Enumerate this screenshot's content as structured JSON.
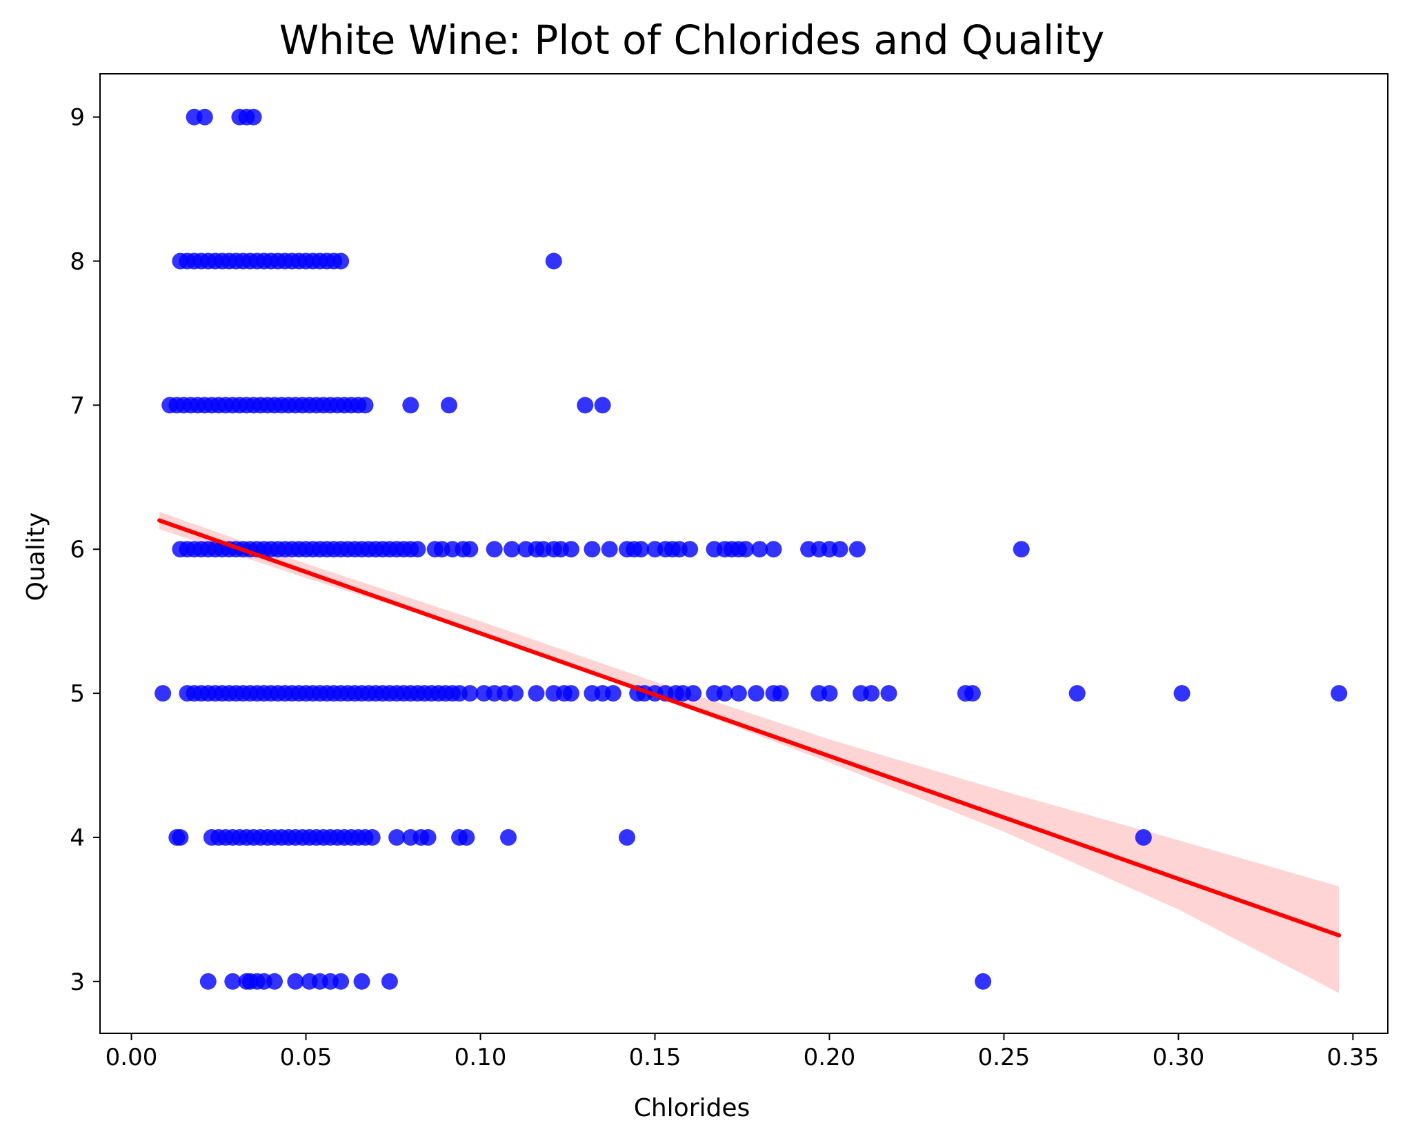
{
  "chart_data": {
    "type": "scatter",
    "title": "White Wine: Plot of Chlorides and Quality",
    "xlabel": "Chlorides",
    "ylabel": "Quality",
    "xlim": [
      -0.009,
      0.36
    ],
    "ylim": [
      2.64,
      9.3
    ],
    "x_ticks": [
      0.0,
      0.05,
      0.1,
      0.15,
      0.2,
      0.25,
      0.3,
      0.35
    ],
    "x_tick_labels": [
      "0.00",
      "0.05",
      "0.10",
      "0.15",
      "0.20",
      "0.25",
      "0.30",
      "0.35"
    ],
    "y_ticks": [
      3,
      4,
      5,
      6,
      7,
      8,
      9
    ],
    "y_tick_labels": [
      "3",
      "4",
      "5",
      "6",
      "7",
      "8",
      "9"
    ],
    "grid": false,
    "colors": {
      "points": "#0000ff",
      "fit_line": "#ff0000",
      "confidence_band": "#ffd4d4"
    },
    "series": [
      {
        "kind": "scatter",
        "clusters": [
          {
            "y": 9,
            "x": [
              0.018,
              0.021,
              0.031,
              0.033,
              0.035
            ]
          },
          {
            "y": 8,
            "x_range": [
              0.014,
              0.06
            ],
            "step": 0.002,
            "extra_x": [
              0.121
            ]
          },
          {
            "y": 7,
            "x_range": [
              0.011,
              0.068
            ],
            "step": 0.002,
            "extra_x": [
              0.08,
              0.091,
              0.13,
              0.135
            ]
          },
          {
            "y": 6,
            "x_range": [
              0.014,
              0.08
            ],
            "step": 0.002,
            "extra_x": [
              0.082,
              0.087,
              0.089,
              0.092,
              0.095,
              0.097,
              0.104,
              0.109,
              0.113,
              0.116,
              0.118,
              0.121,
              0.123,
              0.126,
              0.132,
              0.137,
              0.142,
              0.144,
              0.146,
              0.15,
              0.153,
              0.155,
              0.157,
              0.16,
              0.167,
              0.17,
              0.172,
              0.174,
              0.176,
              0.18,
              0.184,
              0.194,
              0.197,
              0.2,
              0.203,
              0.208,
              0.255
            ]
          },
          {
            "y": 5,
            "x_range": [
              0.016,
              0.095
            ],
            "step": 0.002,
            "extra_x": [
              0.009,
              0.097,
              0.101,
              0.104,
              0.107,
              0.11,
              0.116,
              0.121,
              0.124,
              0.126,
              0.132,
              0.135,
              0.138,
              0.145,
              0.147,
              0.15,
              0.153,
              0.156,
              0.158,
              0.161,
              0.167,
              0.17,
              0.174,
              0.179,
              0.184,
              0.186,
              0.197,
              0.2,
              0.209,
              0.212,
              0.217,
              0.239,
              0.241,
              0.271,
              0.301,
              0.346
            ]
          },
          {
            "y": 4,
            "x_range": [
              0.023,
              0.069
            ],
            "step": 0.002,
            "extra_x": [
              0.013,
              0.014,
              0.076,
              0.08,
              0.083,
              0.085,
              0.094,
              0.096,
              0.108,
              0.142,
              0.29
            ]
          },
          {
            "y": 3,
            "x": [
              0.022,
              0.029,
              0.033,
              0.034,
              0.036,
              0.038,
              0.041,
              0.047,
              0.051,
              0.054,
              0.057,
              0.06,
              0.066,
              0.074,
              0.244
            ]
          }
        ]
      },
      {
        "kind": "regression_line",
        "x": [
          0.008,
          0.346
        ],
        "y": [
          6.2,
          3.32
        ],
        "band_upper": [
          [
            0.008,
            6.26
          ],
          [
            0.05,
            5.9
          ],
          [
            0.1,
            5.5
          ],
          [
            0.15,
            5.08
          ],
          [
            0.2,
            4.68
          ],
          [
            0.25,
            4.32
          ],
          [
            0.3,
            3.98
          ],
          [
            0.346,
            3.66
          ]
        ],
        "band_lower": [
          [
            0.008,
            6.14
          ],
          [
            0.05,
            5.8
          ],
          [
            0.1,
            5.42
          ],
          [
            0.15,
            4.98
          ],
          [
            0.2,
            4.52
          ],
          [
            0.25,
            4.04
          ],
          [
            0.3,
            3.5
          ],
          [
            0.346,
            2.92
          ]
        ]
      }
    ]
  }
}
